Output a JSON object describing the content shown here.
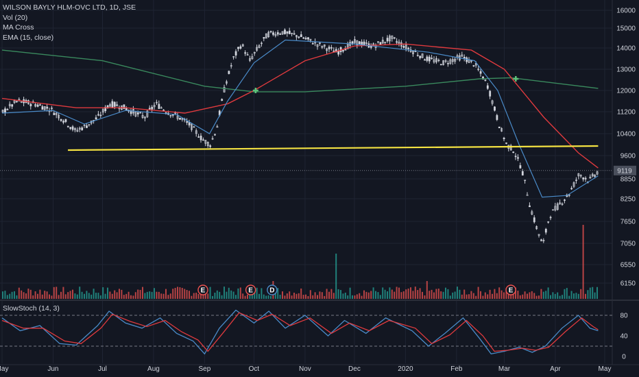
{
  "legend": {
    "title": "WILSON BAYLY HLM-OVC LTD, 1D, JSE",
    "indicators": [
      "Vol (20)",
      "MA Cross",
      "EMA (15, close)"
    ]
  },
  "oscillator_label": "SlowStoch (14, 3)",
  "last_price_label": "9119",
  "colors": {
    "background": "#131722",
    "candle": "#d1d4dc",
    "ema": "#4a8bc9",
    "ma_fast": "#e03a3e",
    "ma_slow": "#3a8a5e",
    "cross_marker": "#5ec27a",
    "support_line": "#f5e342",
    "volume_up": "#26a69a",
    "volume_down": "#ef5350",
    "stoch_k": "#4a8bc9",
    "stoch_d": "#e03a3e",
    "earnings_badge": "#ef5350",
    "dividend_badge": "#4a8bc9",
    "last_price_bg": "#4a4f5c"
  },
  "chart_data": [
    {
      "type": "candlestick",
      "title": "WILSON BAYLY HLM-OVC LTD, 1D, JSE",
      "xlabel": "",
      "ylabel": "",
      "x_ticks": [
        "May",
        "Jun",
        "Jul",
        "Aug",
        "Sep",
        "Oct",
        "Nov",
        "Dec",
        "2020",
        "Feb",
        "Mar",
        "Apr",
        "May"
      ],
      "y_ticks": [
        6150,
        6550,
        7050,
        7650,
        8250,
        8850,
        9600,
        10400,
        11200,
        12000,
        13000,
        14000,
        15000,
        16000
      ],
      "ylim": [
        5800,
        16250
      ],
      "last_price": 9119,
      "close_path": [
        {
          "x": "2019-05-01",
          "y": 11200
        },
        {
          "x": "2019-05-10",
          "y": 11600
        },
        {
          "x": "2019-05-20",
          "y": 11500
        },
        {
          "x": "2019-05-30",
          "y": 11300
        },
        {
          "x": "2019-06-07",
          "y": 10900
        },
        {
          "x": "2019-06-14",
          "y": 10500
        },
        {
          "x": "2019-06-21",
          "y": 10700
        },
        {
          "x": "2019-06-28",
          "y": 11000
        },
        {
          "x": "2019-07-05",
          "y": 11500
        },
        {
          "x": "2019-07-12",
          "y": 11400
        },
        {
          "x": "2019-07-19",
          "y": 11200
        },
        {
          "x": "2019-07-26",
          "y": 11000
        },
        {
          "x": "2019-08-02",
          "y": 11500
        },
        {
          "x": "2019-08-09",
          "y": 11200
        },
        {
          "x": "2019-08-16",
          "y": 11000
        },
        {
          "x": "2019-08-23",
          "y": 10700
        },
        {
          "x": "2019-08-30",
          "y": 10200
        },
        {
          "x": "2019-09-04",
          "y": 10000
        },
        {
          "x": "2019-09-08",
          "y": 10600
        },
        {
          "x": "2019-09-13",
          "y": 12200
        },
        {
          "x": "2019-09-18",
          "y": 13500
        },
        {
          "x": "2019-09-23",
          "y": 14200
        },
        {
          "x": "2019-09-28",
          "y": 13400
        },
        {
          "x": "2019-10-03",
          "y": 14000
        },
        {
          "x": "2019-10-09",
          "y": 14700
        },
        {
          "x": "2019-10-18",
          "y": 14800
        },
        {
          "x": "2019-10-28",
          "y": 14600
        },
        {
          "x": "2019-11-08",
          "y": 14200
        },
        {
          "x": "2019-11-20",
          "y": 13800
        },
        {
          "x": "2019-12-01",
          "y": 14300
        },
        {
          "x": "2019-12-12",
          "y": 14100
        },
        {
          "x": "2019-12-23",
          "y": 14500
        },
        {
          "x": "2020-01-02",
          "y": 14000
        },
        {
          "x": "2020-01-13",
          "y": 13500
        },
        {
          "x": "2020-01-24",
          "y": 13300
        },
        {
          "x": "2020-02-04",
          "y": 13600
        },
        {
          "x": "2020-02-12",
          "y": 13200
        },
        {
          "x": "2020-02-19",
          "y": 12300
        },
        {
          "x": "2020-02-26",
          "y": 10800
        },
        {
          "x": "2020-03-02",
          "y": 10000
        },
        {
          "x": "2020-03-06",
          "y": 9800
        },
        {
          "x": "2020-03-11",
          "y": 9200
        },
        {
          "x": "2020-03-16",
          "y": 8100
        },
        {
          "x": "2020-03-20",
          "y": 7500
        },
        {
          "x": "2020-03-24",
          "y": 7000
        },
        {
          "x": "2020-03-28",
          "y": 7800
        },
        {
          "x": "2020-04-03",
          "y": 8100
        },
        {
          "x": "2020-04-09",
          "y": 8400
        },
        {
          "x": "2020-04-15",
          "y": 9000
        },
        {
          "x": "2020-04-21",
          "y": 8800
        },
        {
          "x": "2020-04-27",
          "y": 9119
        }
      ],
      "ema_path": [
        {
          "x": "2019-05-01",
          "y": 11150
        },
        {
          "x": "2019-06-01",
          "y": 11250
        },
        {
          "x": "2019-06-20",
          "y": 10750
        },
        {
          "x": "2019-07-15",
          "y": 11250
        },
        {
          "x": "2019-08-15",
          "y": 11100
        },
        {
          "x": "2019-09-04",
          "y": 10400
        },
        {
          "x": "2019-09-15",
          "y": 11600
        },
        {
          "x": "2019-10-01",
          "y": 13300
        },
        {
          "x": "2019-10-20",
          "y": 14400
        },
        {
          "x": "2019-12-01",
          "y": 14200
        },
        {
          "x": "2020-01-15",
          "y": 13800
        },
        {
          "x": "2020-02-12",
          "y": 13400
        },
        {
          "x": "2020-02-26",
          "y": 12000
        },
        {
          "x": "2020-03-10",
          "y": 10000
        },
        {
          "x": "2020-03-24",
          "y": 8300
        },
        {
          "x": "2020-04-08",
          "y": 8350
        },
        {
          "x": "2020-04-27",
          "y": 8950
        }
      ],
      "ma_fast_path": [
        {
          "x": "2019-05-01",
          "y": 11700
        },
        {
          "x": "2019-06-15",
          "y": 11350
        },
        {
          "x": "2019-07-15",
          "y": 11350
        },
        {
          "x": "2019-08-20",
          "y": 11150
        },
        {
          "x": "2019-09-15",
          "y": 11500
        },
        {
          "x": "2019-10-01",
          "y": 12000
        },
        {
          "x": "2019-11-01",
          "y": 13400
        },
        {
          "x": "2019-12-01",
          "y": 14100
        },
        {
          "x": "2020-01-01",
          "y": 14200
        },
        {
          "x": "2020-02-10",
          "y": 13900
        },
        {
          "x": "2020-03-01",
          "y": 13000
        },
        {
          "x": "2020-03-25",
          "y": 11000
        },
        {
          "x": "2020-04-15",
          "y": 9700
        },
        {
          "x": "2020-04-27",
          "y": 9200
        }
      ],
      "ma_slow_path": [
        {
          "x": "2019-05-01",
          "y": 13900
        },
        {
          "x": "2019-07-01",
          "y": 13400
        },
        {
          "x": "2019-09-01",
          "y": 12200
        },
        {
          "x": "2019-10-01",
          "y": 11950
        },
        {
          "x": "2019-11-01",
          "y": 11950
        },
        {
          "x": "2020-01-01",
          "y": 12200
        },
        {
          "x": "2020-02-15",
          "y": 12550
        },
        {
          "x": "2020-03-05",
          "y": 12600
        },
        {
          "x": "2020-04-27",
          "y": 12100
        }
      ],
      "cross_markers": [
        {
          "x": "2019-10-02",
          "y": 12000
        },
        {
          "x": "2020-03-08",
          "y": 12550
        }
      ],
      "support_line": {
        "x_start": "2019-06-10",
        "x_end": "2020-04-27",
        "y_start": 9800,
        "y_end": 9950
      },
      "volume_spikes": [
        {
          "x": "2019-10-12",
          "size": "medium",
          "direction": "down"
        },
        {
          "x": "2019-11-20",
          "size": "large",
          "direction": "up"
        },
        {
          "x": "2020-01-13",
          "size": "medium",
          "direction": "down"
        },
        {
          "x": "2020-04-17",
          "size": "very large",
          "direction": "down"
        }
      ],
      "events": [
        {
          "x": "2019-08-31",
          "label": "E",
          "kind": "earnings"
        },
        {
          "x": "2019-09-29",
          "label": "E",
          "kind": "earnings"
        },
        {
          "x": "2019-10-12",
          "label": "D",
          "kind": "dividend"
        },
        {
          "x": "2020-03-05",
          "label": "E",
          "kind": "earnings"
        }
      ]
    },
    {
      "type": "line",
      "title": "SlowStoch (14, 3)",
      "y_ticks": [
        0,
        40,
        80
      ],
      "ylim": [
        0,
        100
      ],
      "levels": [
        20,
        80
      ],
      "series": [
        {
          "values": [
            {
              "x": "2019-05-01",
              "y": 75
            },
            {
              "x": "2019-05-12",
              "y": 50
            },
            {
              "x": "2019-05-24",
              "y": 60
            },
            {
              "x": "2019-06-05",
              "y": 25
            },
            {
              "x": "2019-06-15",
              "y": 22
            },
            {
              "x": "2019-06-28",
              "y": 60
            },
            {
              "x": "2019-07-05",
              "y": 88
            },
            {
              "x": "2019-07-15",
              "y": 65
            },
            {
              "x": "2019-07-25",
              "y": 55
            },
            {
              "x": "2019-08-05",
              "y": 75
            },
            {
              "x": "2019-08-15",
              "y": 45
            },
            {
              "x": "2019-08-25",
              "y": 30
            },
            {
              "x": "2019-09-01",
              "y": 5
            },
            {
              "x": "2019-09-10",
              "y": 55
            },
            {
              "x": "2019-09-20",
              "y": 90
            },
            {
              "x": "2019-10-01",
              "y": 65
            },
            {
              "x": "2019-10-10",
              "y": 88
            },
            {
              "x": "2019-10-20",
              "y": 55
            },
            {
              "x": "2019-11-01",
              "y": 80
            },
            {
              "x": "2019-11-15",
              "y": 40
            },
            {
              "x": "2019-11-25",
              "y": 70
            },
            {
              "x": "2019-12-08",
              "y": 45
            },
            {
              "x": "2019-12-20",
              "y": 75
            },
            {
              "x": "2020-01-05",
              "y": 50
            },
            {
              "x": "2020-01-15",
              "y": 20
            },
            {
              "x": "2020-01-25",
              "y": 45
            },
            {
              "x": "2020-02-05",
              "y": 75
            },
            {
              "x": "2020-02-15",
              "y": 35
            },
            {
              "x": "2020-02-22",
              "y": 5
            },
            {
              "x": "2020-03-01",
              "y": 10
            },
            {
              "x": "2020-03-10",
              "y": 18
            },
            {
              "x": "2020-03-18",
              "y": 8
            },
            {
              "x": "2020-03-26",
              "y": 20
            },
            {
              "x": "2020-04-05",
              "y": 55
            },
            {
              "x": "2020-04-15",
              "y": 80
            },
            {
              "x": "2020-04-22",
              "y": 55
            },
            {
              "x": "2020-04-27",
              "y": 50
            }
          ]
        },
        {
          "values": [
            {
              "x": "2019-05-01",
              "y": 70
            },
            {
              "x": "2019-05-14",
              "y": 55
            },
            {
              "x": "2019-05-26",
              "y": 55
            },
            {
              "x": "2019-06-08",
              "y": 30
            },
            {
              "x": "2019-06-18",
              "y": 25
            },
            {
              "x": "2019-06-30",
              "y": 55
            },
            {
              "x": "2019-07-07",
              "y": 82
            },
            {
              "x": "2019-07-18",
              "y": 68
            },
            {
              "x": "2019-07-28",
              "y": 58
            },
            {
              "x": "2019-08-08",
              "y": 70
            },
            {
              "x": "2019-08-18",
              "y": 48
            },
            {
              "x": "2019-08-28",
              "y": 32
            },
            {
              "x": "2019-09-03",
              "y": 10
            },
            {
              "x": "2019-09-12",
              "y": 45
            },
            {
              "x": "2019-09-22",
              "y": 85
            },
            {
              "x": "2019-10-03",
              "y": 70
            },
            {
              "x": "2019-10-12",
              "y": 82
            },
            {
              "x": "2019-10-23",
              "y": 60
            },
            {
              "x": "2019-11-04",
              "y": 75
            },
            {
              "x": "2019-11-17",
              "y": 45
            },
            {
              "x": "2019-11-28",
              "y": 65
            },
            {
              "x": "2019-12-10",
              "y": 50
            },
            {
              "x": "2019-12-22",
              "y": 70
            },
            {
              "x": "2020-01-07",
              "y": 55
            },
            {
              "x": "2020-01-17",
              "y": 25
            },
            {
              "x": "2020-01-28",
              "y": 42
            },
            {
              "x": "2020-02-07",
              "y": 70
            },
            {
              "x": "2020-02-17",
              "y": 40
            },
            {
              "x": "2020-02-24",
              "y": 10
            },
            {
              "x": "2020-03-03",
              "y": 12
            },
            {
              "x": "2020-03-12",
              "y": 16
            },
            {
              "x": "2020-03-20",
              "y": 12
            },
            {
              "x": "2020-03-28",
              "y": 18
            },
            {
              "x": "2020-04-07",
              "y": 48
            },
            {
              "x": "2020-04-17",
              "y": 75
            },
            {
              "x": "2020-04-24",
              "y": 58
            },
            {
              "x": "2020-04-27",
              "y": 52
            }
          ]
        }
      ]
    }
  ]
}
